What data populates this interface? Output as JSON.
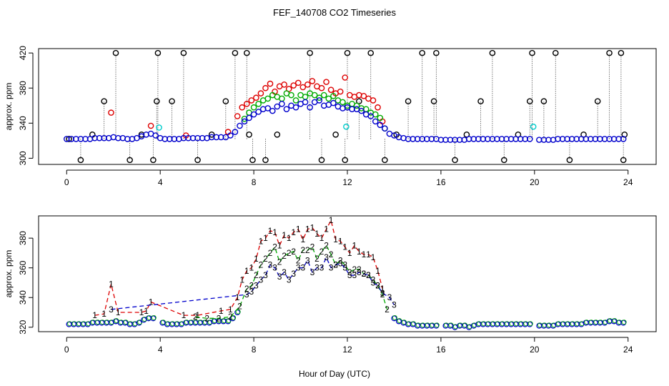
{
  "chart_data": [
    {
      "type": "scatter",
      "title": "FEF_140708  CO2 Timeseries",
      "xlabel": "",
      "ylabel": "approx. ppm",
      "xlim": [
        -1.2,
        25.2
      ],
      "ylim": [
        293,
        425
      ],
      "xticks": [
        "0",
        "4",
        "8",
        "12",
        "16",
        "20",
        "24"
      ],
      "yticks": [
        "300",
        "340",
        "380",
        "420"
      ],
      "marker": "circle",
      "series": [
        {
          "name": "black",
          "color": "#000000",
          "x": [
            0.1,
            0.6,
            1.1,
            1.6,
            2.1,
            2.7,
            3.2,
            3.7,
            3.85,
            3.9,
            4.5,
            5.0,
            5.6,
            6.2,
            6.8,
            7.2,
            7.7,
            7.8,
            7.95,
            8.5,
            9.0,
            10.4,
            10.9,
            11.5,
            11.9,
            12.0,
            12.5,
            13.0,
            13.6,
            14.1,
            14.6,
            15.2,
            15.7,
            15.8,
            16.6,
            17.1,
            17.7,
            18.2,
            18.7,
            19.3,
            19.8,
            19.9,
            20.4,
            20.9,
            21.5,
            22.1,
            22.7,
            23.2,
            23.7,
            23.8,
            23.85
          ],
          "y": [
            322,
            298,
            327,
            365,
            420,
            298,
            327,
            298,
            365,
            420,
            365,
            420,
            298,
            327,
            365,
            420,
            420,
            327,
            298,
            298,
            327,
            420,
            298,
            327,
            298,
            420,
            365,
            420,
            298,
            327,
            365,
            420,
            365,
            420,
            298,
            327,
            365,
            420,
            298,
            327,
            365,
            420,
            365,
            420,
            298,
            327,
            365,
            420,
            420,
            298,
            327
          ]
        },
        {
          "name": "cyan",
          "color": "#00cccc",
          "x": [
            3.95,
            11.95,
            19.95
          ],
          "y": [
            335,
            336,
            336
          ]
        },
        {
          "name": "red",
          "color": "#dd0000",
          "x": [
            1.9,
            3.6,
            5.1,
            6.9,
            7.3,
            7.5,
            7.7,
            7.9,
            8.1,
            8.3,
            8.5,
            8.7,
            8.9,
            9.1,
            9.3,
            9.5,
            9.7,
            9.9,
            10.1,
            10.3,
            10.5,
            10.7,
            10.9,
            11.1,
            11.3,
            11.5,
            11.7,
            11.9,
            12.1,
            12.3,
            12.5,
            12.7,
            12.9,
            13.1,
            13.3,
            13.5
          ],
          "y": [
            352,
            337,
            326,
            330,
            348,
            358,
            362,
            366,
            369,
            374,
            380,
            385,
            376,
            382,
            384,
            379,
            383,
            386,
            381,
            384,
            388,
            382,
            380,
            387,
            378,
            374,
            376,
            392,
            372,
            370,
            372,
            371,
            368,
            366,
            358,
            342
          ]
        },
        {
          "name": "green",
          "color": "#00aa00",
          "x": [
            7.6,
            7.8,
            8.0,
            8.2,
            8.4,
            8.6,
            8.8,
            9.0,
            9.2,
            9.4,
            9.6,
            9.8,
            10.0,
            10.2,
            10.4,
            10.6,
            10.8,
            11.0,
            11.2,
            11.4,
            11.6,
            11.8,
            12.0,
            12.2,
            12.4,
            12.6,
            12.8,
            13.0,
            13.2,
            13.4,
            13.6
          ],
          "y": [
            345,
            352,
            358,
            362,
            366,
            368,
            372,
            370,
            368,
            374,
            372,
            366,
            372,
            370,
            374,
            372,
            369,
            372,
            368,
            371,
            366,
            364,
            360,
            362,
            360,
            357,
            356,
            352,
            350,
            346,
            334
          ]
        },
        {
          "name": "blue",
          "color": "#0000cc",
          "x": [
            0.0,
            0.2,
            0.4,
            0.6,
            0.8,
            1.0,
            1.2,
            1.4,
            1.6,
            1.8,
            2.0,
            2.2,
            2.4,
            2.6,
            2.8,
            3.0,
            3.2,
            3.4,
            3.6,
            3.8,
            4.0,
            4.2,
            4.4,
            4.6,
            4.8,
            5.0,
            5.2,
            5.4,
            5.6,
            5.8,
            6.0,
            6.2,
            6.4,
            6.6,
            6.8,
            7.0,
            7.2,
            7.4,
            7.6,
            7.8,
            8.0,
            8.2,
            8.4,
            8.6,
            8.8,
            9.0,
            9.2,
            9.4,
            9.6,
            9.8,
            10.0,
            10.2,
            10.4,
            10.6,
            10.8,
            11.0,
            11.2,
            11.4,
            11.6,
            11.8,
            12.0,
            12.2,
            12.4,
            12.6,
            12.8,
            13.0,
            13.2,
            13.4,
            13.6,
            13.8,
            14.0,
            14.2,
            14.4,
            14.6,
            14.8,
            15.0,
            15.2,
            15.4,
            15.6,
            15.8,
            16.0,
            16.2,
            16.4,
            16.6,
            16.8,
            17.0,
            17.2,
            17.4,
            17.6,
            17.8,
            18.0,
            18.2,
            18.4,
            18.6,
            18.8,
            19.0,
            19.2,
            19.4,
            19.6,
            19.8,
            20.2,
            20.4,
            20.6,
            20.8,
            21.0,
            21.2,
            21.4,
            21.6,
            21.8,
            22.0,
            22.2,
            22.4,
            22.6,
            22.8,
            23.0,
            23.2,
            23.4,
            23.6,
            23.8
          ],
          "y": [
            322,
            322,
            322,
            322,
            322,
            322,
            323,
            323,
            323,
            323,
            324,
            323,
            323,
            322,
            322,
            323,
            325,
            327,
            328,
            326,
            323,
            322,
            322,
            322,
            322,
            323,
            323,
            323,
            323,
            323,
            323,
            324,
            324,
            324,
            324,
            326,
            330,
            337,
            342,
            346,
            350,
            353,
            356,
            357,
            354,
            359,
            362,
            356,
            360,
            358,
            362,
            364,
            358,
            364,
            366,
            360,
            361,
            363,
            359,
            357,
            358,
            356,
            356,
            354,
            350,
            348,
            342,
            338,
            334,
            328,
            326,
            324,
            323,
            322,
            322,
            322,
            322,
            322,
            322,
            322,
            321,
            321,
            321,
            321,
            321,
            321,
            322,
            322,
            322,
            322,
            322,
            322,
            322,
            322,
            322,
            322,
            322,
            322,
            322,
            322,
            321,
            321,
            321,
            321,
            322,
            322,
            322,
            322,
            322,
            322,
            322,
            322,
            322,
            322,
            322,
            322,
            322,
            322,
            322
          ]
        }
      ]
    },
    {
      "type": "line",
      "title": "",
      "xlabel": "Hour of Day (UTC)",
      "ylabel": "approx. ppm",
      "xlim": [
        -1.2,
        25.2
      ],
      "ylim": [
        317,
        395
      ],
      "xticks": [
        "0",
        "4",
        "8",
        "12",
        "16",
        "20",
        "24"
      ],
      "yticks": [
        "320",
        "340",
        "360",
        "380"
      ],
      "series": [
        {
          "name": "1",
          "label": "1",
          "color": "#dd0000",
          "x": [
            1.2,
            1.6,
            1.9,
            2.2,
            3.2,
            3.4,
            3.6,
            5.0,
            5.6,
            6.6,
            7.0,
            7.3,
            7.5,
            7.7,
            7.9,
            8.1,
            8.3,
            8.5,
            8.7,
            8.9,
            9.1,
            9.3,
            9.5,
            9.7,
            9.9,
            10.1,
            10.3,
            10.5,
            10.7,
            10.9,
            11.1,
            11.3,
            11.5,
            11.7,
            11.9,
            12.1,
            12.3,
            12.5,
            12.7,
            12.9,
            13.1,
            13.3,
            13.5
          ],
          "y": [
            328,
            329,
            349,
            330,
            330,
            331,
            337,
            328,
            328,
            331,
            332,
            340,
            352,
            358,
            360,
            366,
            378,
            380,
            385,
            384,
            375,
            382,
            380,
            384,
            386,
            379,
            386,
            387,
            383,
            380,
            386,
            392,
            379,
            378,
            374,
            370,
            375,
            371,
            369,
            369,
            367,
            358,
            346
          ]
        },
        {
          "name": "2",
          "label": "2",
          "color": "#00aa00",
          "x": [
            5.5,
            6.0,
            6.5,
            7.0,
            7.4,
            7.7,
            7.9,
            8.1,
            8.3,
            8.5,
            8.7,
            8.9,
            9.1,
            9.3,
            9.5,
            9.7,
            9.9,
            10.1,
            10.3,
            10.5,
            10.7,
            10.9,
            11.1,
            11.3,
            11.5,
            11.7,
            11.9,
            12.1,
            12.3,
            12.5,
            12.7,
            12.9,
            13.1,
            13.3,
            13.5,
            13.7
          ],
          "y": [
            327,
            326,
            326,
            327,
            334,
            346,
            348,
            355,
            362,
            366,
            370,
            374,
            364,
            368,
            370,
            371,
            365,
            372,
            372,
            374,
            366,
            371,
            375,
            369,
            362,
            365,
            362,
            357,
            359,
            359,
            356,
            355,
            352,
            348,
            342,
            332
          ]
        },
        {
          "name": "3",
          "label": "3",
          "color": "#0000cc",
          "x": [
            1.9,
            7.7,
            7.9,
            8.1,
            8.3,
            8.5,
            8.7,
            8.9,
            9.1,
            9.3,
            9.5,
            9.7,
            9.9,
            10.1,
            10.3,
            10.5,
            10.7,
            10.9,
            11.1,
            11.3,
            11.5,
            11.7,
            11.9,
            12.1,
            12.3,
            12.5,
            12.7,
            12.9,
            13.1,
            13.3,
            13.5,
            13.8,
            14.0
          ],
          "y": [
            332,
            342,
            344,
            348,
            352,
            355,
            362,
            360,
            354,
            357,
            352,
            356,
            360,
            360,
            365,
            357,
            360,
            360,
            367,
            360,
            362,
            363,
            360,
            355,
            355,
            357,
            356,
            355,
            350,
            348,
            343,
            340,
            335
          ]
        },
        {
          "name": "circles-blue",
          "label": "",
          "color": "#0000cc",
          "x": [
            0.1,
            0.3,
            0.5,
            0.7,
            0.9,
            1.1,
            1.3,
            1.5,
            1.7,
            1.9,
            2.1,
            2.3,
            2.5,
            2.7,
            2.9,
            3.1,
            3.3,
            3.5,
            3.7,
            4.1,
            4.3,
            4.5,
            4.7,
            4.9,
            5.1,
            5.3,
            5.5,
            5.7,
            5.9,
            6.1,
            6.3,
            6.5,
            6.7,
            6.9,
            7.1,
            7.3,
            14.0,
            14.2,
            14.4,
            14.6,
            14.8,
            15.0,
            15.2,
            15.4,
            15.6,
            15.8,
            16.2,
            16.4,
            16.6,
            16.8,
            17.0,
            17.2,
            17.4,
            17.6,
            17.8,
            18.0,
            18.2,
            18.4,
            18.6,
            18.8,
            19.0,
            19.2,
            19.4,
            19.6,
            19.8,
            20.2,
            20.4,
            20.6,
            20.8,
            21.0,
            21.2,
            21.4,
            21.6,
            21.8,
            22.0,
            22.2,
            22.4,
            22.6,
            22.8,
            23.0,
            23.2,
            23.4,
            23.6,
            23.8
          ],
          "y": [
            322,
            322,
            322,
            322,
            322,
            323,
            323,
            323,
            323,
            323,
            324,
            323,
            323,
            322,
            322,
            323,
            325,
            326,
            326,
            323,
            322,
            322,
            322,
            322,
            323,
            323,
            323,
            323,
            323,
            323,
            324,
            324,
            324,
            324,
            326,
            330,
            326,
            324,
            323,
            322,
            322,
            321,
            321,
            321,
            321,
            321,
            321,
            321,
            320,
            321,
            321,
            320,
            321,
            322,
            322,
            322,
            322,
            322,
            322,
            322,
            322,
            322,
            322,
            322,
            322,
            321,
            321,
            321,
            321,
            322,
            322,
            322,
            322,
            322,
            322,
            323,
            323,
            323,
            323,
            323,
            324,
            324,
            323,
            323
          ]
        }
      ]
    }
  ]
}
